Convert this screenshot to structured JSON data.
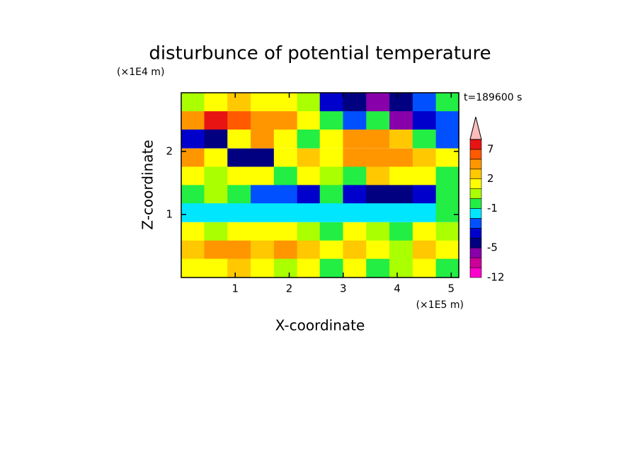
{
  "chart_data": {
    "type": "contour",
    "title": "disturbunce of potential temperature",
    "x_label": "X-coordinate",
    "y_label": "Z-coordinate",
    "x_unit": "(×1E5 m)",
    "y_unit": "(×1E4 m)",
    "annotation": "t=189600 s",
    "xlim": [
      0,
      5.14
    ],
    "ylim": [
      0,
      2.93
    ],
    "xticks": [
      1,
      2,
      3,
      4,
      5
    ],
    "yticks": [
      1,
      2
    ],
    "x": [
      0.21,
      0.64,
      1.07,
      1.5,
      1.93,
      2.36,
      2.78,
      3.21,
      3.64,
      4.07,
      4.5,
      4.93
    ],
    "y": [
      2.78,
      2.49,
      2.2,
      1.9,
      1.61,
      1.32,
      1.03,
      0.73,
      0.44,
      0.15
    ],
    "z": [
      [
        0.5,
        1.5,
        2.5,
        1.5,
        1.5,
        0.5,
        -3.5,
        -4.5,
        -6,
        -4.5,
        -2.5,
        -0.5
      ],
      [
        3.5,
        7.5,
        5.5,
        4,
        3.5,
        1.5,
        -0.5,
        -2.5,
        -0.5,
        -5.5,
        -3.5,
        -2.5
      ],
      [
        -3.5,
        -4.5,
        1.5,
        3.5,
        1.5,
        -0.5,
        1.5,
        3.5,
        3.5,
        2.5,
        -0.5,
        -2.5
      ],
      [
        3.5,
        1.5,
        -4.5,
        -4.5,
        1.5,
        2.5,
        1.5,
        4,
        4,
        3.5,
        2.5,
        1.5
      ],
      [
        1.5,
        0.5,
        1.5,
        1.5,
        -0.5,
        1.5,
        0.5,
        -0.5,
        2.5,
        1.5,
        1.5,
        -0.5
      ],
      [
        -0.5,
        0.5,
        -0.5,
        -2.5,
        -2.5,
        -3.5,
        -0.5,
        -3.5,
        -4.5,
        -4.5,
        -3.5,
        -0.5
      ],
      [
        -1.5,
        -1.5,
        -1.5,
        -1.5,
        -1.5,
        -1.5,
        -1.5,
        -1.5,
        -1.5,
        -1.5,
        -1.5,
        -0.5
      ],
      [
        1.5,
        0.5,
        1.5,
        1.5,
        1.5,
        0.5,
        -0.5,
        1.5,
        0.5,
        -0.5,
        1.5,
        0.5
      ],
      [
        2.5,
        3.5,
        3.5,
        2.5,
        3.5,
        2.5,
        1.5,
        2.5,
        1.5,
        0.5,
        2.5,
        1.5
      ],
      [
        1.5,
        1.5,
        2.5,
        1.5,
        0.5,
        1.5,
        -0.5,
        1.5,
        -0.5,
        0.5,
        1.5,
        -0.5
      ]
    ],
    "levels": [
      -12,
      -9,
      -7,
      -5,
      -4,
      -3,
      -2,
      -1,
      0,
      1,
      2,
      3,
      5,
      7,
      9
    ],
    "colors": [
      "#ff00cc",
      "#cc0099",
      "#8800aa",
      "#000080",
      "#0000cc",
      "#0050ff",
      "#00e6ff",
      "#22ee44",
      "#aaff00",
      "#ffff00",
      "#ffc800",
      "#ff9600",
      "#ff5a00",
      "#e81414"
    ],
    "extend_color": "#ffbcbc",
    "colorbar_ticks": [
      7,
      2,
      -1,
      -5,
      -12
    ]
  }
}
